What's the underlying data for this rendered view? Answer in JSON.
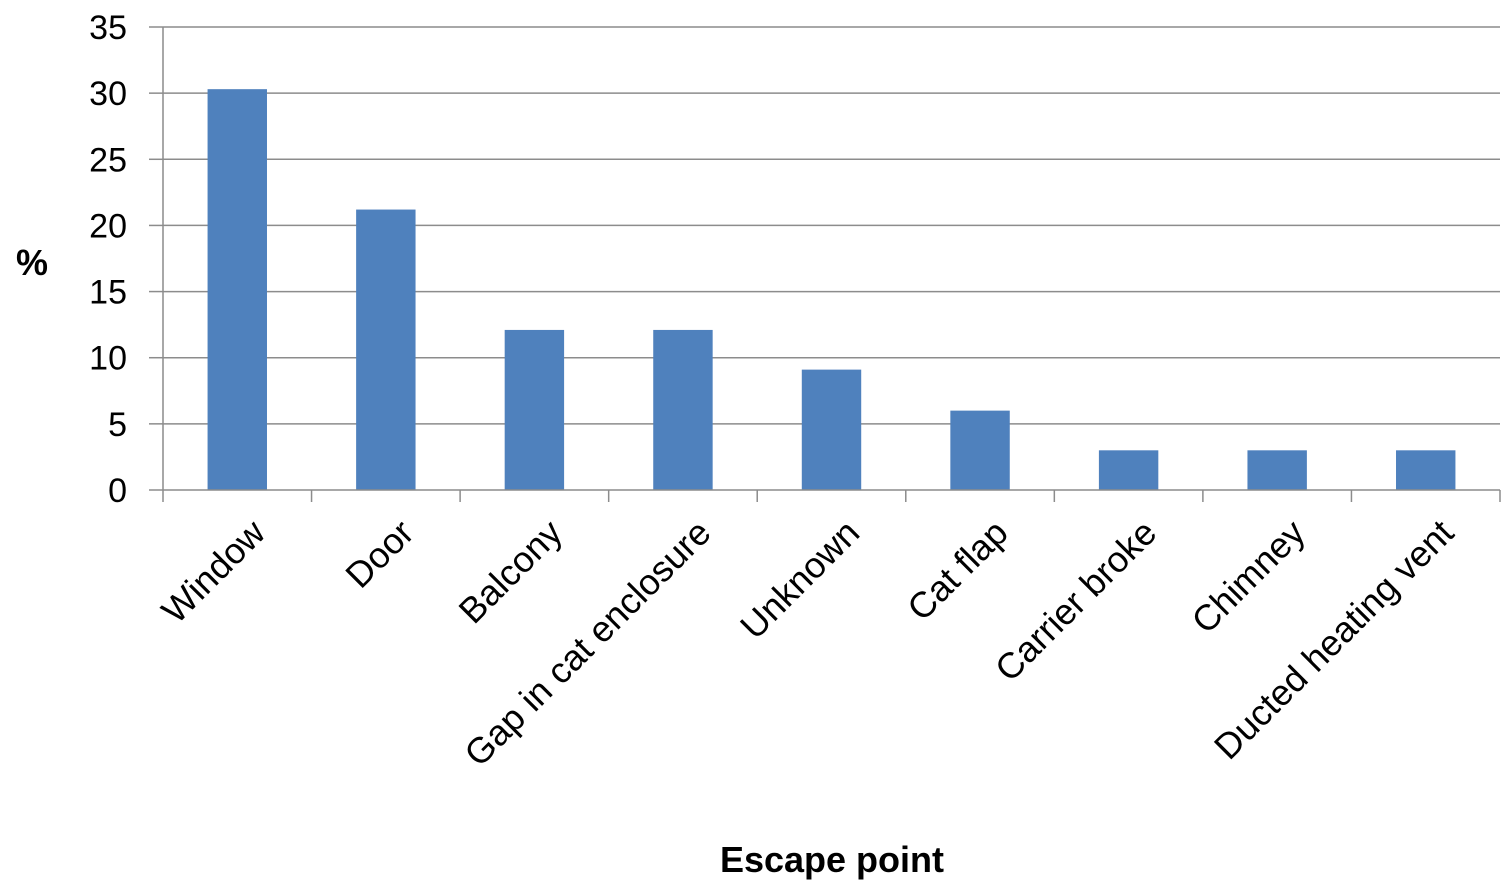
{
  "chart_data": {
    "type": "bar",
    "categories": [
      "Window",
      "Door",
      "Balcony",
      "Gap in cat enclosure",
      "Unknown",
      "Cat flap",
      "Carrier broke",
      "Chimney",
      "Ducted heating vent"
    ],
    "values": [
      30.3,
      21.2,
      12.1,
      12.1,
      9.1,
      6.0,
      3.0,
      3.0,
      3.0
    ],
    "xlabel": "Escape point",
    "ylabel": "%",
    "ylim": [
      0,
      35
    ],
    "yticks": [
      0,
      5,
      10,
      15,
      20,
      25,
      30,
      35
    ],
    "grid": true,
    "legend": "none",
    "bar_color": "#4f81bd"
  }
}
